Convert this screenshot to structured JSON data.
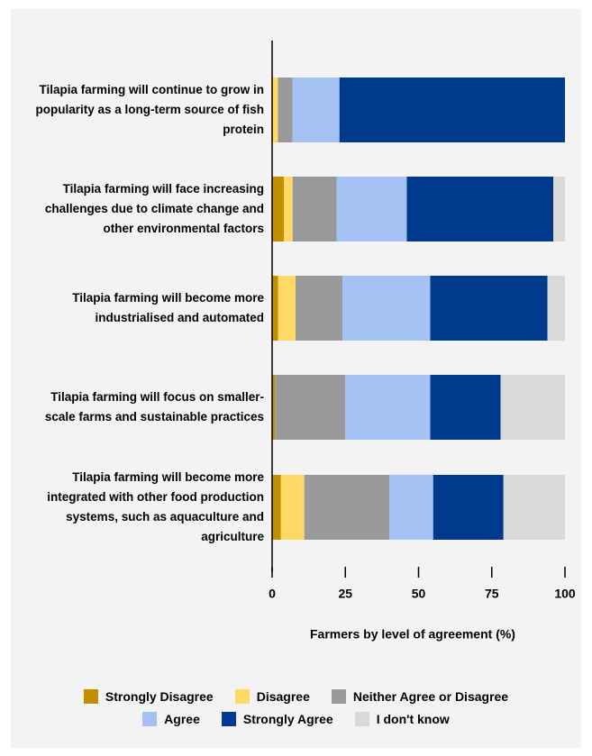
{
  "chart_data": {
    "type": "stacked_bar_horizontal",
    "x_label": "Farmers by level of agreement (%)",
    "categories": [
      "Tilapia farming will continue to grow in popularity as a long-term source of fish protein",
      "Tilapia farming will face increasing challenges due to climate change and other environmental factors",
      "Tilapia farming will become more industrialised and automated",
      "Tilapia farming will focus on smaller-scale farms and sustainable practices",
      "Tilapia farming will become more integrated with other food production systems, such as aquaculture and agriculture"
    ],
    "series": [
      {
        "name": "Strongly Disagree",
        "color": "#bf8f00",
        "values": [
          0,
          4,
          2,
          1,
          3
        ]
      },
      {
        "name": "Disagree",
        "color": "#ffd966",
        "values": [
          2,
          3,
          6,
          0,
          8
        ]
      },
      {
        "name": "Neither Agree or Disagree",
        "color": "#999999",
        "values": [
          5,
          15,
          16,
          24,
          29
        ]
      },
      {
        "name": "Agree",
        "color": "#a4c2f4",
        "values": [
          16,
          24,
          30,
          29,
          15
        ]
      },
      {
        "name": "Strongly Agree",
        "color": "#003a8c",
        "values": [
          77,
          50,
          40,
          24,
          24
        ]
      },
      {
        "name": "I don't know",
        "color": "#d9d9d9",
        "values": [
          0,
          4,
          6,
          22,
          21
        ]
      }
    ],
    "xlim": [
      0,
      100
    ],
    "xticks": [
      0,
      25,
      50,
      75,
      100
    ],
    "legend": "bottom"
  }
}
